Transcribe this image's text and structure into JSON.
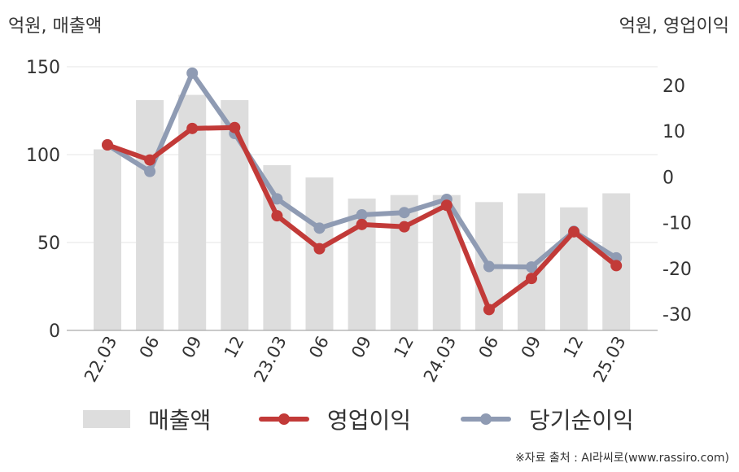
{
  "units": {
    "left": "억원, 매출액",
    "right": "억원, 영업이익"
  },
  "legend": {
    "revenue": "매출액",
    "operating_profit": "영업이익",
    "net_income": "당기순이익"
  },
  "source": "※자료 출처 : AI라씨로(www.rassiro.com)",
  "colors": {
    "bar": "#dddddd",
    "operating_profit": "#c23a38",
    "net_income": "#8f9bb3",
    "grid": "#e6e6e6",
    "axis": "#aaaaaa"
  },
  "chart_data": {
    "type": "bar",
    "categories": [
      "22.03",
      "06",
      "09",
      "12",
      "23.03",
      "06",
      "09",
      "12",
      "24.03",
      "06",
      "09",
      "12",
      "25.03"
    ],
    "series": [
      {
        "name": "매출액",
        "type": "bar",
        "axis": "left",
        "values": [
          103,
          131,
          134,
          131,
          94,
          87,
          75,
          77,
          77,
          73,
          78,
          70,
          78
        ]
      },
      {
        "name": "영업이익",
        "type": "line",
        "axis": "right",
        "values": [
          7.0,
          3.7,
          10.6,
          10.8,
          -8.5,
          -15.7,
          -10.4,
          -10.9,
          -6.2,
          -29.0,
          -22.2,
          -12.0,
          -19.4
        ]
      },
      {
        "name": "당기순이익",
        "type": "line",
        "axis": "right",
        "values": [
          7.0,
          1.2,
          22.7,
          9.5,
          -4.8,
          -11.2,
          -8.3,
          -7.8,
          -4.9,
          -19.6,
          -19.7,
          -11.9,
          -17.7
        ]
      }
    ],
    "y_left": {
      "ylim": [
        0,
        150
      ],
      "ticks": [
        0,
        50,
        100,
        150
      ]
    },
    "y_right": {
      "ylim": [
        -33,
        25
      ],
      "ticks": [
        -30,
        -20,
        -10,
        0,
        10,
        20
      ]
    },
    "grid": true,
    "legend_position": "bottom"
  }
}
